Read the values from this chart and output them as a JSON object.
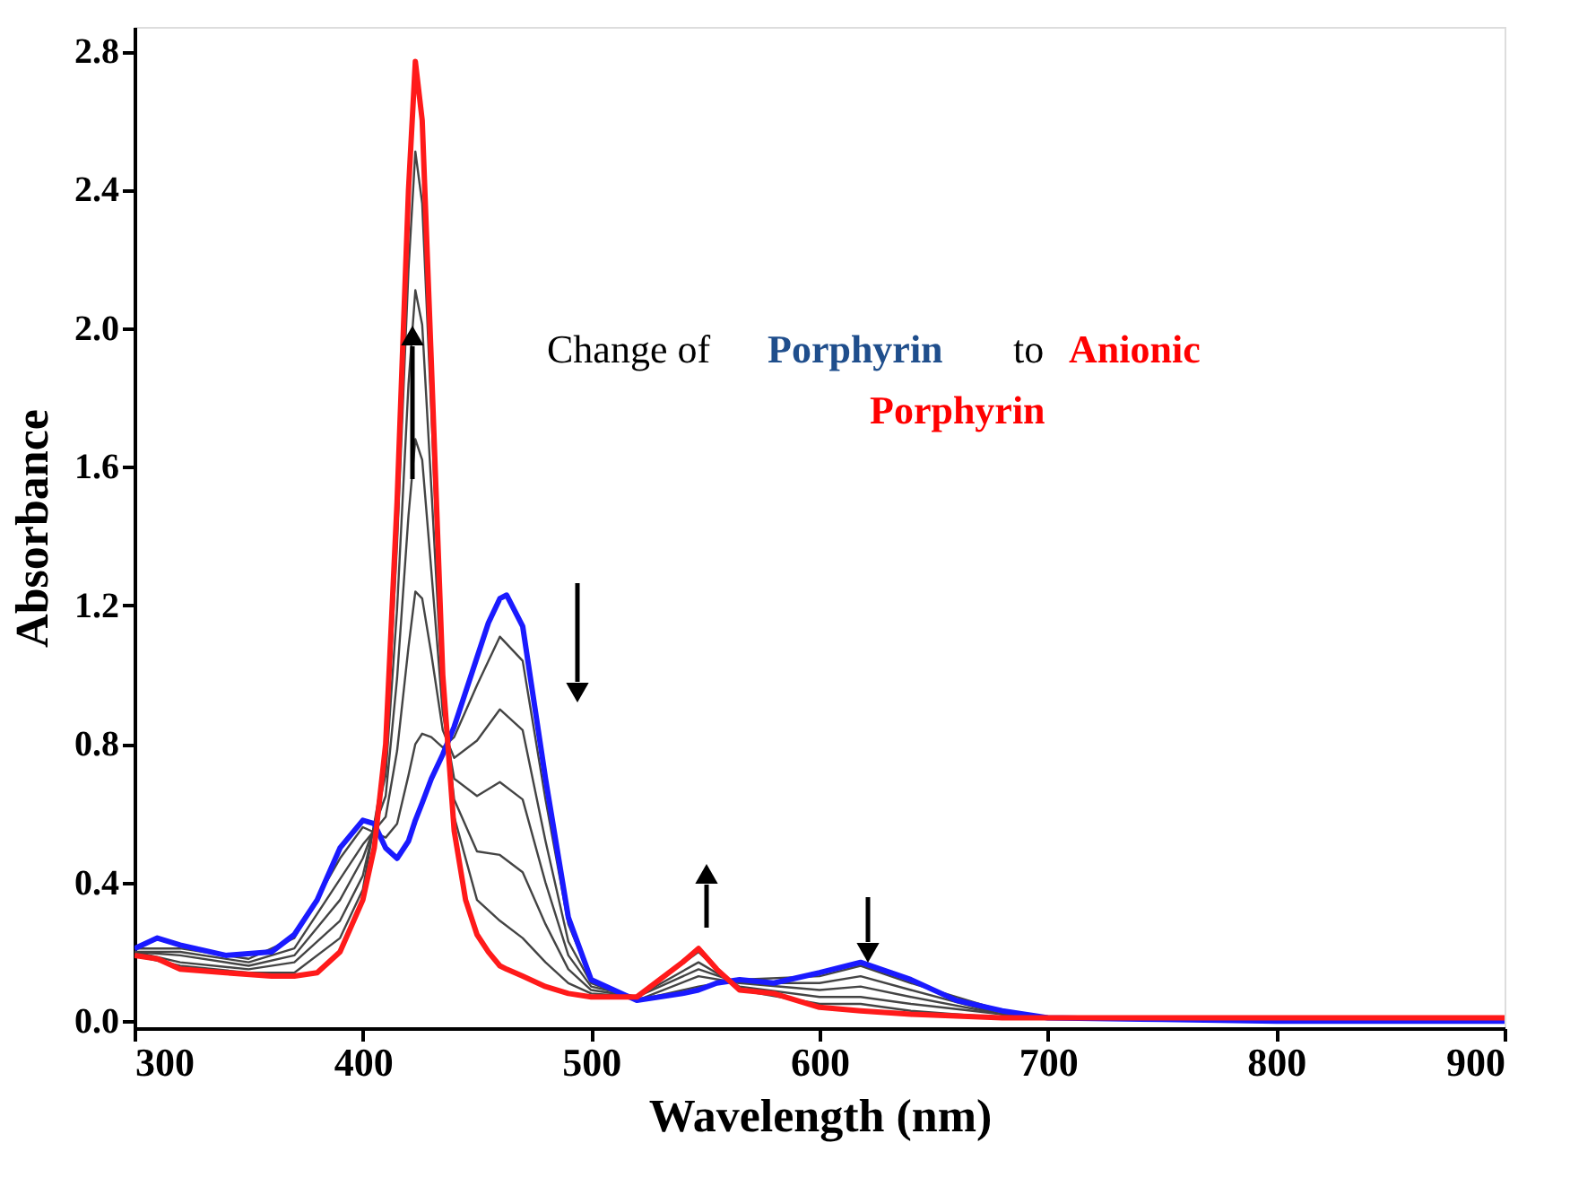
{
  "chart_data": {
    "type": "line",
    "xlabel": "Wavelength (nm)",
    "ylabel": "Absorbance",
    "xlim": [
      300,
      900
    ],
    "xticks": [
      300,
      400,
      500,
      600,
      700,
      800,
      900
    ],
    "ylim": [
      -0.02,
      2.87
    ],
    "yticks": [
      {
        "value": 0,
        "label": "0.0"
      },
      0.4,
      0.8,
      1.2,
      1.6,
      {
        "value": 2,
        "label": "2.0"
      },
      2.4,
      2.8
    ],
    "grid": false,
    "line_style": "solid",
    "marker": "none",
    "annotations": [
      "Change of",
      "Porphyrin",
      "to",
      "Anionic",
      "Porphyrin"
    ],
    "series": [
      {
        "color": "#444444",
        "x": [
          300,
          320,
          350,
          370,
          390,
          400,
          410,
          415,
          420,
          423,
          426,
          430,
          435,
          440,
          450,
          460,
          470,
          480,
          490,
          500,
          520,
          547,
          565,
          600,
          618,
          640,
          680,
          700
        ],
        "values": [
          0.21,
          0.21,
          0.18,
          0.24,
          0.47,
          0.56,
          0.53,
          0.57,
          0.71,
          0.8,
          0.83,
          0.82,
          0.79,
          0.82,
          0.97,
          1.11,
          1.04,
          0.64,
          0.28,
          0.12,
          0.06,
          0.1,
          0.12,
          0.13,
          0.16,
          0.11,
          0.03,
          0.01
        ]
      },
      {
        "color": "#444444",
        "x": [
          300,
          320,
          350,
          370,
          390,
          400,
          410,
          415,
          420,
          423,
          426,
          430,
          435,
          440,
          450,
          460,
          470,
          480,
          490,
          500,
          520,
          547,
          565,
          600,
          618,
          640,
          680,
          700
        ],
        "values": [
          0.2,
          0.2,
          0.17,
          0.21,
          0.41,
          0.51,
          0.59,
          0.78,
          1.08,
          1.24,
          1.22,
          1.06,
          0.84,
          0.76,
          0.81,
          0.9,
          0.84,
          0.52,
          0.23,
          0.11,
          0.06,
          0.13,
          0.11,
          0.11,
          0.13,
          0.09,
          0.02,
          0.01
        ]
      },
      {
        "color": "#444444",
        "x": [
          300,
          320,
          350,
          370,
          390,
          400,
          410,
          415,
          420,
          423,
          426,
          430,
          435,
          440,
          450,
          460,
          470,
          480,
          490,
          500,
          520,
          547,
          565,
          600,
          618,
          640,
          680,
          700
        ],
        "values": [
          0.2,
          0.19,
          0.16,
          0.19,
          0.35,
          0.47,
          0.65,
          0.99,
          1.46,
          1.68,
          1.62,
          1.3,
          0.89,
          0.7,
          0.65,
          0.69,
          0.64,
          0.4,
          0.19,
          0.1,
          0.07,
          0.15,
          0.11,
          0.09,
          0.1,
          0.07,
          0.02,
          0.01
        ]
      },
      {
        "color": "#444444",
        "x": [
          300,
          320,
          350,
          370,
          390,
          400,
          410,
          415,
          420,
          423,
          426,
          430,
          435,
          440,
          450,
          460,
          470,
          480,
          490,
          500,
          520,
          547,
          565,
          600,
          618,
          640,
          680,
          700
        ],
        "values": [
          0.2,
          0.17,
          0.15,
          0.17,
          0.29,
          0.42,
          0.71,
          1.19,
          1.84,
          2.11,
          2.01,
          1.54,
          0.93,
          0.64,
          0.49,
          0.48,
          0.43,
          0.28,
          0.15,
          0.09,
          0.07,
          0.17,
          0.1,
          0.07,
          0.07,
          0.05,
          0.02,
          0.01
        ]
      },
      {
        "color": "#444444",
        "x": [
          300,
          320,
          350,
          370,
          390,
          400,
          410,
          415,
          420,
          423,
          426,
          430,
          435,
          440,
          450,
          460,
          470,
          480,
          490,
          500,
          520,
          547,
          565,
          600,
          618,
          640,
          680,
          700
        ],
        "values": [
          0.19,
          0.16,
          0.14,
          0.14,
          0.24,
          0.38,
          0.76,
          1.38,
          2.17,
          2.51,
          2.36,
          1.76,
          0.97,
          0.59,
          0.35,
          0.29,
          0.24,
          0.17,
          0.11,
          0.08,
          0.07,
          0.2,
          0.09,
          0.05,
          0.05,
          0.03,
          0.01,
          0.01
        ]
      },
      {
        "color": "#1a1aff",
        "x": [
          300,
          310,
          320,
          340,
          360,
          370,
          380,
          390,
          400,
          405,
          410,
          415,
          420,
          423,
          426,
          430,
          435,
          440,
          445,
          450,
          455,
          460,
          463,
          470,
          480,
          490,
          500,
          520,
          540,
          547,
          555,
          565,
          580,
          600,
          618,
          640,
          660,
          680,
          700,
          750,
          800,
          850,
          900
        ],
        "values": [
          0.21,
          0.24,
          0.22,
          0.19,
          0.2,
          0.25,
          0.35,
          0.5,
          0.58,
          0.57,
          0.5,
          0.47,
          0.52,
          0.58,
          0.63,
          0.7,
          0.77,
          0.85,
          0.95,
          1.05,
          1.15,
          1.22,
          1.23,
          1.14,
          0.7,
          0.3,
          0.12,
          0.06,
          0.08,
          0.09,
          0.11,
          0.12,
          0.11,
          0.14,
          0.17,
          0.12,
          0.06,
          0.03,
          0.01,
          0.005,
          0,
          0,
          0
        ]
      },
      {
        "color": "#ff1a1a",
        "x": [
          300,
          310,
          320,
          340,
          360,
          370,
          380,
          390,
          400,
          405,
          410,
          415,
          420,
          423,
          426,
          430,
          435,
          440,
          445,
          450,
          455,
          460,
          463,
          470,
          480,
          490,
          500,
          520,
          540,
          547,
          555,
          565,
          580,
          600,
          618,
          640,
          660,
          680,
          700,
          750,
          800,
          850,
          900
        ],
        "values": [
          0.19,
          0.18,
          0.15,
          0.14,
          0.13,
          0.13,
          0.14,
          0.2,
          0.35,
          0.5,
          0.8,
          1.5,
          2.4,
          2.77,
          2.6,
          1.9,
          1.0,
          0.55,
          0.35,
          0.25,
          0.2,
          0.16,
          0.15,
          0.13,
          0.1,
          0.08,
          0.07,
          0.07,
          0.17,
          0.21,
          0.15,
          0.09,
          0.08,
          0.04,
          0.03,
          0.02,
          0.015,
          0.01,
          0.01,
          0.01,
          0.01,
          0.01,
          0.01
        ]
      }
    ]
  }
}
